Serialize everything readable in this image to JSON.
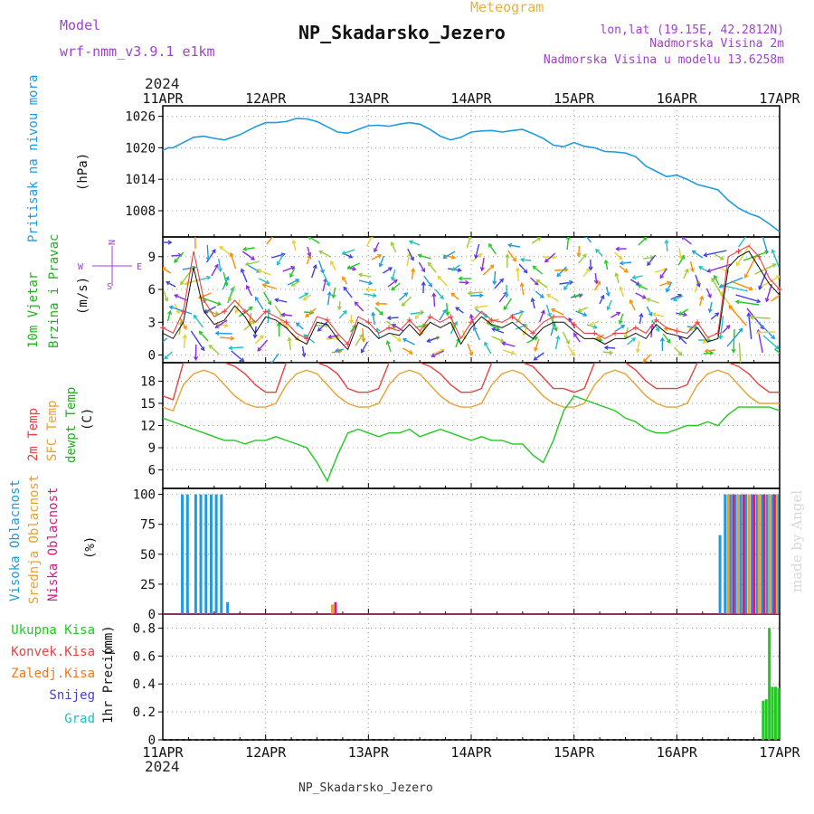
{
  "header": {
    "model_label": "Model",
    "model_value": "wrf-nmm_v3.9.1 e1km",
    "meteogram_label": "Meteogram",
    "station_title": "NP_Skadarsko_Jezero",
    "coords": "lon,lat (19.15E, 42.2812N)",
    "elevation": "Nadmorska Visina 2m",
    "model_elevation": "Nadmorska Visina u modelu 13.6258m",
    "footer_name": "NP_Skadarsko_Jezero",
    "credit": "made by Angel"
  },
  "colors": {
    "pressure": "#1e9be0",
    "wind": "#22b022",
    "temp2m": "#e84040",
    "sfc_temp": "#e8a030",
    "dewpoint": "#22c822",
    "high_cloud": "#1e9be0",
    "mid_cloud": "#e8a030",
    "low_cloud": "#d02080",
    "total_precip": "#22c822",
    "conv_precip": "#e84040",
    "frozen_precip": "#f07820",
    "snow": "#4040e0",
    "hail": "#20c0c0",
    "label_purple": "#a040d0"
  },
  "chart_data": [
    {
      "type": "line",
      "panel": "pressure",
      "ylabel": "Pritisak na nivou mora",
      "unit": "(hPa)",
      "ylim": [
        1003,
        1028
      ],
      "yticks": [
        1008,
        1014,
        1020,
        1026
      ],
      "x_year": "2024",
      "xticks": [
        "11APR",
        "12APR",
        "13APR",
        "14APR",
        "15APR",
        "16APR",
        "17APR"
      ],
      "grid": true,
      "x_days": [
        0,
        0.05,
        0.1,
        0.2,
        0.3,
        0.4,
        0.5,
        0.6,
        0.75,
        0.9,
        1.0,
        1.1,
        1.2,
        1.3,
        1.4,
        1.5,
        1.6,
        1.7,
        1.8,
        1.9,
        2.0,
        2.1,
        2.2,
        2.3,
        2.4,
        2.5,
        2.6,
        2.7,
        2.8,
        2.9,
        3.0,
        3.1,
        3.2,
        3.3,
        3.4,
        3.5,
        3.6,
        3.7,
        3.8,
        3.9,
        4.0,
        4.1,
        4.2,
        4.3,
        4.4,
        4.5,
        4.6,
        4.7,
        4.8,
        4.9,
        5.0,
        5.1,
        5.2,
        5.3,
        5.4,
        5.5,
        5.6,
        5.7,
        5.8,
        5.9,
        6.0
      ],
      "series": [
        {
          "values": [
            1019.5,
            1020,
            1020,
            1021,
            1022,
            1022.2,
            1021.8,
            1021.5,
            1022.5,
            1024,
            1024.8,
            1024.8,
            1025,
            1025.6,
            1025.5,
            1025,
            1024,
            1023,
            1022.8,
            1023.5,
            1024.2,
            1024.3,
            1024.1,
            1024.5,
            1024.8,
            1024.5,
            1023.5,
            1022.2,
            1021.5,
            1022,
            1023,
            1023.2,
            1023.3,
            1023,
            1023.3,
            1023.5,
            1022.7,
            1021.8,
            1020.5,
            1020.2,
            1021,
            1020.3,
            1020,
            1019.3,
            1019.2,
            1019,
            1018.3,
            1016.5,
            1015.5,
            1014.5,
            1014.8,
            1014,
            1013,
            1012.5,
            1012,
            1010,
            1008.5,
            1007.5,
            1006.8,
            1005.5,
            1004
          ]
        }
      ]
    },
    {
      "type": "line",
      "panel": "wind",
      "ylabel": [
        "10m Vjetar",
        "Brzina i Pravac"
      ],
      "unit": "(m/s)",
      "ylim": [
        -0.7,
        10.8
      ],
      "yticks": [
        0,
        3,
        6,
        9
      ],
      "compass": {
        "north": "N",
        "south": "S",
        "east": "E",
        "west": "W"
      },
      "x_days": [
        0,
        0.1,
        0.2,
        0.3,
        0.4,
        0.5,
        0.6,
        0.7,
        0.8,
        0.9,
        1.0,
        1.1,
        1.2,
        1.3,
        1.4,
        1.5,
        1.6,
        1.7,
        1.8,
        1.9,
        2.0,
        2.1,
        2.2,
        2.3,
        2.4,
        2.5,
        2.6,
        2.7,
        2.8,
        2.9,
        3.0,
        3.1,
        3.2,
        3.3,
        3.4,
        3.5,
        3.6,
        3.7,
        3.8,
        3.9,
        4.0,
        4.1,
        4.2,
        4.3,
        4.4,
        4.5,
        4.6,
        4.7,
        4.8,
        4.9,
        5.0,
        5.1,
        5.2,
        5.3,
        5.4,
        5.5,
        5.6,
        5.7,
        5.8,
        5.9,
        6.0
      ],
      "series": [
        {
          "name": "speed",
          "values": [
            2,
            1.5,
            3,
            8,
            4,
            2.8,
            3.2,
            4.5,
            3.5,
            2,
            3.5,
            3.2,
            2.5,
            1.5,
            1,
            3,
            2.8,
            1.5,
            0.5,
            3,
            2.5,
            1.5,
            2,
            1.8,
            2.8,
            1.8,
            3,
            2.5,
            3,
            1,
            2.5,
            3.5,
            2.8,
            2.5,
            3,
            2.2,
            1.5,
            2.5,
            3,
            3,
            2.2,
            1.5,
            1.5,
            1,
            1.5,
            1.5,
            2,
            1.5,
            2.8,
            2,
            1.8,
            1.5,
            2.5,
            1.2,
            1.5,
            8,
            9,
            9.5,
            8,
            6.5,
            5.5
          ]
        },
        {
          "name": "gust",
          "values": [
            2.5,
            2,
            4,
            9.5,
            5,
            3.5,
            4,
            5,
            4,
            3,
            4,
            3.5,
            3,
            2,
            1.5,
            3.5,
            3.2,
            2,
            1,
            3.5,
            3,
            2,
            2.5,
            2.2,
            3.2,
            2.2,
            3.5,
            3,
            3.5,
            1.5,
            3,
            4,
            3.2,
            3,
            3.5,
            2.8,
            2,
            3,
            3.5,
            3.5,
            2.8,
            2,
            2,
            1.5,
            2,
            2,
            2.5,
            2,
            3.2,
            2.5,
            2.2,
            2,
            3,
            1.6,
            2,
            9,
            9.5,
            10,
            9,
            7,
            6
          ]
        }
      ]
    },
    {
      "type": "line",
      "panel": "temperature",
      "ylabel": [
        "2m Temp",
        "SFC Temp",
        "dewpt Temp"
      ],
      "unit": "(C)",
      "ylim": [
        3.5,
        20.5
      ],
      "yticks": [
        6,
        9,
        12,
        15,
        18
      ],
      "x_days": [
        0,
        0.1,
        0.2,
        0.3,
        0.4,
        0.5,
        0.6,
        0.7,
        0.8,
        0.9,
        1.0,
        1.1,
        1.2,
        1.3,
        1.4,
        1.5,
        1.6,
        1.7,
        1.8,
        1.9,
        2.0,
        2.1,
        2.2,
        2.3,
        2.4,
        2.5,
        2.6,
        2.7,
        2.8,
        2.9,
        3.0,
        3.1,
        3.2,
        3.3,
        3.4,
        3.5,
        3.6,
        3.7,
        3.8,
        3.9,
        4.0,
        4.1,
        4.2,
        4.3,
        4.4,
        4.5,
        4.6,
        4.7,
        4.8,
        4.9,
        5.0,
        5.1,
        5.2,
        5.3,
        5.4,
        5.5,
        5.6,
        5.7,
        5.8,
        5.9,
        6.0
      ],
      "series": [
        {
          "name": "2m Temp",
          "values": [
            16,
            15.5,
            20.5,
            20.5,
            20.5,
            20.5,
            20.5,
            20,
            19,
            17.5,
            16.5,
            16.5,
            20.5,
            20.5,
            20.5,
            20.5,
            20,
            19,
            17,
            16.5,
            16.5,
            17,
            20.5,
            20.5,
            20.5,
            20.5,
            20,
            19,
            17.5,
            16.5,
            16.5,
            17,
            20.5,
            20.5,
            20.5,
            20.5,
            20,
            18.5,
            17,
            17,
            16.5,
            17,
            20.5,
            20.5,
            20.5,
            20.5,
            19.5,
            18,
            17,
            17,
            17,
            17.5,
            20.5,
            20.5,
            20.5,
            20.5,
            20,
            19,
            17.5,
            16.5,
            16.5
          ]
        },
        {
          "name": "SFC Temp",
          "values": [
            14.5,
            14,
            17.5,
            19,
            19.5,
            19,
            17.5,
            16,
            15,
            14.5,
            14.5,
            15,
            17.5,
            19,
            19.5,
            19,
            17.5,
            16,
            15,
            14.5,
            14.5,
            15,
            17.5,
            19,
            19.5,
            19,
            17.5,
            16,
            15,
            14.5,
            14.5,
            15,
            17.5,
            19,
            19.5,
            19,
            17.5,
            16,
            15,
            14.5,
            14.5,
            15,
            17.5,
            19,
            19.5,
            19,
            17.5,
            16,
            15,
            14.5,
            14.5,
            15,
            17.5,
            19,
            19.5,
            19,
            17.5,
            16,
            15,
            15,
            15
          ]
        },
        {
          "name": "dewpt Temp",
          "values": [
            13,
            12.5,
            12,
            11.5,
            11,
            10.5,
            10,
            10,
            9.5,
            10,
            10,
            10.5,
            10,
            9.5,
            9,
            7,
            4.5,
            8,
            11,
            11.5,
            11,
            10.5,
            11,
            11,
            11.5,
            10.5,
            11,
            11.5,
            11,
            10.5,
            10,
            10.5,
            10,
            10,
            9.5,
            9.5,
            8,
            7,
            10,
            14,
            16,
            15.5,
            15,
            14.5,
            14,
            13,
            12.5,
            11.5,
            11,
            11,
            11.5,
            12,
            12,
            12.5,
            12,
            13.5,
            14.5,
            14.5,
            14.5,
            14.5,
            14
          ]
        }
      ]
    },
    {
      "type": "bar",
      "panel": "clouds",
      "ylabel": [
        "Visoka Oblacnost",
        "Srednja Oblacnost",
        "Niska Oblacnost"
      ],
      "unit": "(%)",
      "ylim": [
        0,
        105
      ],
      "yticks": [
        0,
        25,
        50,
        75,
        100
      ],
      "series": [
        {
          "name": "Visoka Oblacnost",
          "x_days": [
            0.19,
            0.24,
            0.32,
            0.37,
            0.42,
            0.47,
            0.52,
            0.57,
            0.63,
            5.42,
            5.47,
            5.52,
            5.57,
            5.62,
            5.67,
            5.73,
            5.78,
            5.83,
            5.88,
            5.93,
            5.98
          ],
          "values": [
            100,
            100,
            100,
            100,
            100,
            100,
            100,
            100,
            10,
            66,
            100,
            100,
            100,
            100,
            100,
            100,
            100,
            100,
            100,
            100,
            100
          ]
        },
        {
          "name": "Srednja Oblacnost",
          "x_days": [
            1.65,
            5.5,
            5.6,
            5.7,
            5.8,
            5.9,
            5.97
          ],
          "values": [
            8,
            100,
            100,
            100,
            100,
            100,
            100
          ]
        },
        {
          "name": "Niska Oblacnost",
          "x_days": [
            1.68,
            5.55,
            5.65,
            5.75,
            5.85,
            5.95
          ],
          "values": [
            10,
            100,
            100,
            100,
            100,
            100
          ]
        }
      ]
    },
    {
      "type": "bar",
      "panel": "precipitation",
      "ylabel": "1hr Precip",
      "unit": "(mm)",
      "ylim": [
        0,
        0.9
      ],
      "yticks": [
        0,
        0.2,
        0.4,
        0.6,
        0.8
      ],
      "legend": [
        "Ukupna Kisa",
        "Konvek.Kisa",
        "Zaledj.Kisa",
        "Snijeg",
        "Grad"
      ],
      "series": [
        {
          "name": "Ukupna Kisa",
          "x_days": [
            5.84,
            5.87,
            5.9,
            5.93,
            5.96,
            5.99
          ],
          "values": [
            0.28,
            0.29,
            0.8,
            0.38,
            0.38,
            0.37
          ]
        }
      ]
    }
  ]
}
